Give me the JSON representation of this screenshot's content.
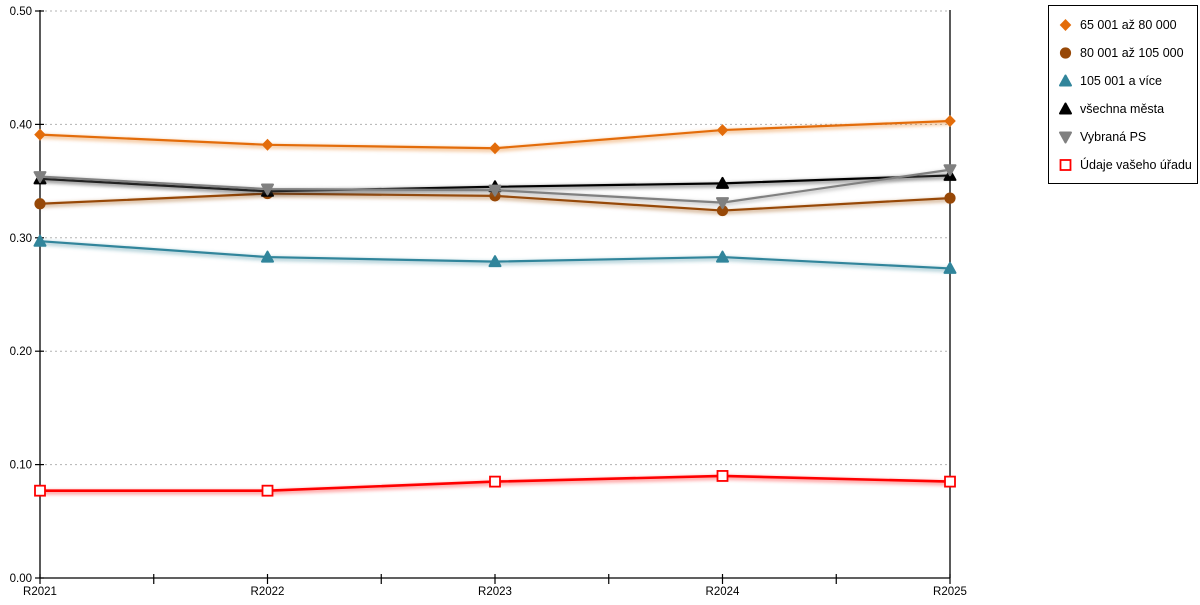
{
  "chart_data": {
    "type": "line",
    "title": "",
    "xlabel": "",
    "ylabel": "",
    "categories": [
      "R2021",
      "R2022",
      "R2023",
      "R2024",
      "R2025"
    ],
    "series": [
      {
        "name": "65 001 až 80 000",
        "color": "#E36C0A",
        "marker": "diamond",
        "values": [
          0.391,
          0.382,
          0.379,
          0.395,
          0.403
        ]
      },
      {
        "name": "80 001 až 105 000",
        "color": "#974807",
        "marker": "circle",
        "values": [
          0.33,
          0.339,
          0.337,
          0.324,
          0.335
        ]
      },
      {
        "name": "105 001 a více",
        "color": "#31859B",
        "marker": "triangle-up",
        "values": [
          0.297,
          0.283,
          0.279,
          0.283,
          0.273
        ]
      },
      {
        "name": "všechna města",
        "color": "#000000",
        "marker": "triangle-up",
        "values": [
          0.352,
          0.341,
          0.345,
          0.348,
          0.355
        ]
      },
      {
        "name": "Vybraná PS",
        "color": "#808080",
        "marker": "triangle-down",
        "values": [
          0.354,
          0.343,
          0.342,
          0.331,
          0.36
        ]
      },
      {
        "name": "Údaje vašeho úřadu",
        "color": "#FF0000",
        "marker": "square-open",
        "values": [
          0.077,
          0.077,
          0.085,
          0.09,
          0.085
        ]
      }
    ],
    "y_axis": {
      "tick_labels": [
        "0.00",
        "0.10",
        "0.20",
        "0.30",
        "0.40",
        "0.50"
      ],
      "tick_values": [
        0.0,
        0.1,
        0.2,
        0.3,
        0.4,
        0.5
      ],
      "ylim": [
        0.0,
        0.5
      ]
    },
    "x_axis": {
      "minor_ticks_between_categories": true
    },
    "grid": "horizontal-dotted",
    "legend_position": "top-right",
    "colors": {
      "gridline": "#b3b3b3",
      "axis": "#000000",
      "background": "#ffffff"
    }
  }
}
